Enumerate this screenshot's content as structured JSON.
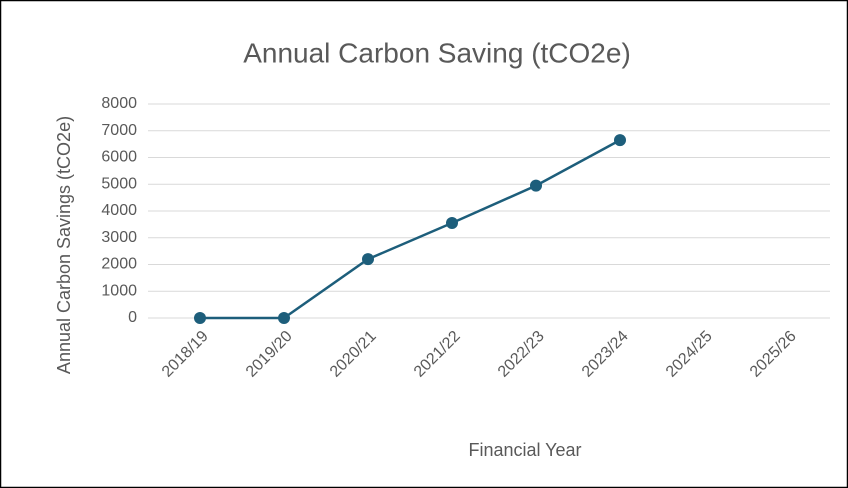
{
  "chart_data": {
    "type": "line",
    "title": "Annual Carbon Saving (tCO2e)",
    "x_label": "Financial Year",
    "y_label": "Annual Carbon Savings (tCO2e)",
    "categories": [
      "2018/19",
      "2019/20",
      "2020/21",
      "2021/22",
      "2022/23",
      "2023/24",
      "2024/25",
      "2025/26"
    ],
    "series": [
      {
        "name": "Annual Carbon Saving",
        "color": "#1d5e7b",
        "values": [
          0,
          0,
          2200,
          3550,
          4950,
          6650,
          null,
          null
        ]
      }
    ],
    "ylim": [
      0,
      8000
    ],
    "yticks": [
      0,
      1000,
      2000,
      3000,
      4000,
      5000,
      6000,
      7000,
      8000
    ],
    "grid": true
  }
}
